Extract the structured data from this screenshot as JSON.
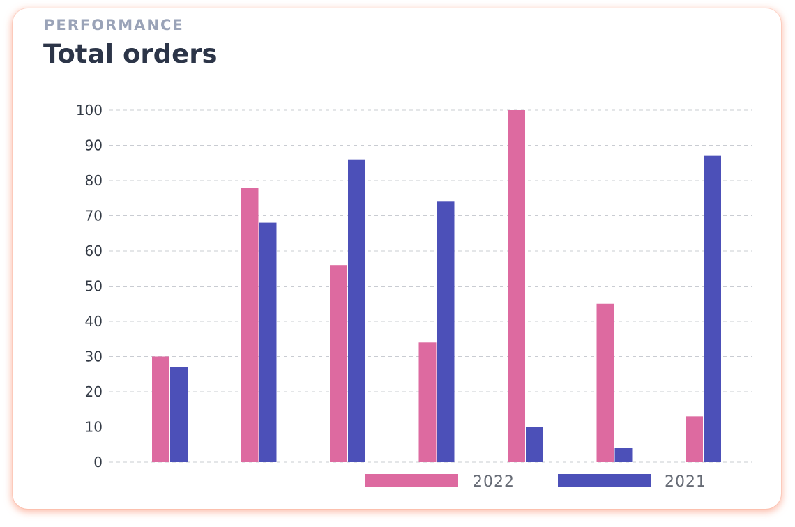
{
  "header": {
    "eyebrow": "PERFORMANCE",
    "title": "Total orders"
  },
  "chart_data": {
    "type": "bar",
    "categories": [
      "",
      "",
      "",
      "",
      "",
      "",
      ""
    ],
    "series": [
      {
        "name": "2022",
        "color": "#dd6aa0",
        "values": [
          30,
          78,
          56,
          34,
          100,
          45,
          13
        ]
      },
      {
        "name": "2021",
        "color": "#4c50b8",
        "values": [
          27,
          68,
          86,
          74,
          10,
          4,
          87
        ]
      }
    ],
    "y_ticks": [
      "0",
      "10",
      "20",
      "30",
      "40",
      "50",
      "60",
      "70",
      "80",
      "90",
      "100"
    ],
    "ylim": [
      0,
      100
    ],
    "grid": true,
    "legend_position": "bottom-right"
  }
}
